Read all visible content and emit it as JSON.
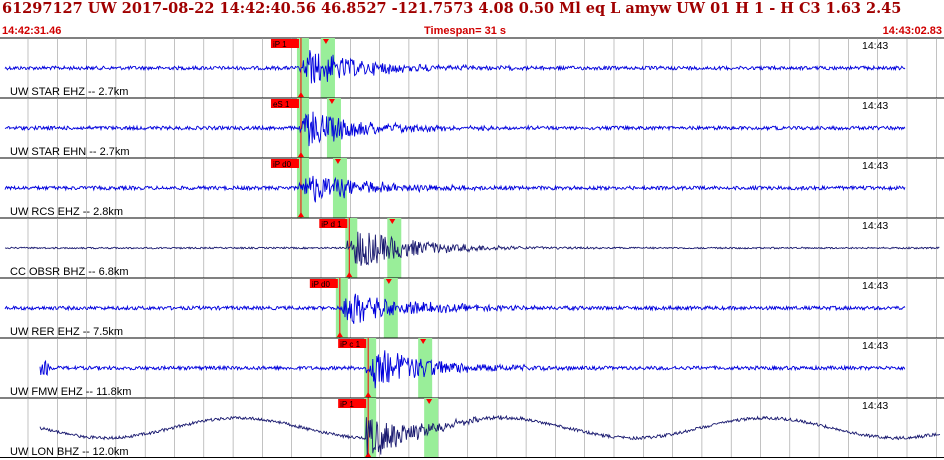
{
  "header": {
    "title": "61297127 UW 2017-08-22 14:42:40.56   46.8527 -121.7573   4.08  0.50 Ml  eq  L amyw     UW 01  H   1  -  H C3    1.63  2.45",
    "start_time": "14:42:31.46",
    "timespan": "Timespan=  31 s",
    "end_time": "14:43:02.83"
  },
  "colors": {
    "title": "#a00000",
    "subheader": "#d00000",
    "trace_blue": "#0000dd",
    "trace_dark": "#1a1a70",
    "pick_red": "#ff0000",
    "window_green": "#99ee99",
    "grid": "#9a9a9a"
  },
  "channels": [
    {
      "label": "UW STAR EHZ -- 2.7km",
      "time": "14:43",
      "pick": "iP 1",
      "color": "blue",
      "shape": "quake",
      "onset": 0.34,
      "amp": 0.8
    },
    {
      "label": "UW STAR EHN -- 2.7km",
      "time": "14:43",
      "pick": "eS 1",
      "color": "blue",
      "shape": "quake",
      "onset": 0.34,
      "amp": 0.8
    },
    {
      "label": "UW RCS EHZ -- 2.8km",
      "time": "14:43",
      "pick": "iP d0",
      "color": "blue",
      "shape": "quake",
      "onset": 0.34,
      "amp": 0.7
    },
    {
      "label": "CC OBSR BHZ -- 6.8km",
      "time": "14:43",
      "pick": "iP d 1",
      "color": "dark",
      "shape": "quake",
      "onset": 0.37,
      "amp": 0.9
    },
    {
      "label": "UW RER EHZ -- 7.5km",
      "time": "14:43",
      "pick": "iP d0",
      "color": "blue",
      "shape": "quake",
      "onset": 0.36,
      "amp": 0.8
    },
    {
      "label": "UW FMW EHZ -- 11.8km",
      "time": "14:43",
      "pick": "iP c 1",
      "color": "blue",
      "shape": "quake",
      "onset": 0.39,
      "amp": 0.9
    },
    {
      "label": "UW LON BHZ -- 12.0km",
      "time": "14:43",
      "pick": "iP 1",
      "color": "dark",
      "shape": "swell",
      "onset": 0.39,
      "amp": 1.0
    }
  ]
}
